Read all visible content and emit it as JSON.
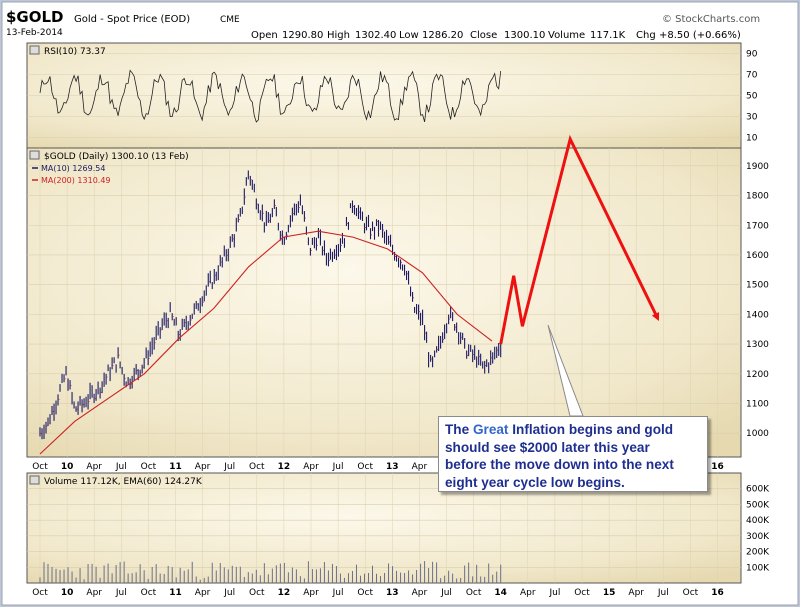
{
  "header": {
    "symbol": "$GOLD",
    "description": "Gold - Spot Price (EOD)",
    "exchange": "CME",
    "date": "13-Feb-2014",
    "watermark": "© StockCharts.com",
    "open_label": "Open",
    "open": "1290.80",
    "high_label": "High",
    "high": "1302.40",
    "low_label": "Low",
    "low": "1286.20",
    "close_label": "Close",
    "close": "1300.10",
    "volume_label": "Volume",
    "volume": "117.1K",
    "chg_label": "Chg",
    "chg": "+8.50 (+0.66%)"
  },
  "rsi_panel": {
    "label": "RSI(10) 73.37",
    "ticks": [
      "90",
      "70",
      "50",
      "30",
      "10"
    ]
  },
  "price_panel": {
    "label": "$GOLD (Daily) 1300.10 (13 Feb)",
    "ma10_label": "MA(10) 1269.54",
    "ma200_label": "MA(200) 1310.49",
    "ticks": [
      "1900",
      "1800",
      "1700",
      "1600",
      "1500",
      "1400",
      "1300",
      "1200",
      "1100",
      "1000"
    ]
  },
  "volume_panel": {
    "label": "Volume 117.12K, EMA(60) 124.27K",
    "ticks": [
      "600K",
      "500K",
      "400K",
      "300K",
      "200K",
      "100K"
    ]
  },
  "annotation": {
    "line1_pre": "The ",
    "line1_hl": "Great",
    "line1_post": " Inflation begins and gold",
    "line2": "should see $2000 later this year",
    "line3": "before the move down into the next",
    "line4": "eight year cycle low begins."
  },
  "colors": {
    "price_bar": "#1a1a66",
    "ma200": "#cc2222",
    "projection": "#ee1111",
    "panel_bg": "#efe6c9",
    "panel_bg_light": "#fbf6e6"
  },
  "chart_data": {
    "type": "line",
    "title": "$GOLD (Daily) 1300.10 (13 Feb)",
    "x_labels": [
      "Oct",
      "10",
      "Apr",
      "Jul",
      "Oct",
      "11",
      "Apr",
      "Jul",
      "Oct",
      "12",
      "Apr",
      "Jul",
      "Oct",
      "13",
      "Apr",
      "Jul",
      "Oct",
      "14",
      "Apr",
      "Jul",
      "Oct",
      "15",
      "Apr",
      "Jul",
      "Oct",
      "16"
    ],
    "ylim": [
      920,
      1960
    ],
    "series": [
      {
        "name": "$GOLD price",
        "x": [
          0,
          1,
          2,
          3,
          4,
          5,
          6,
          7,
          8,
          9,
          10,
          11,
          12,
          13,
          14,
          15,
          16,
          17,
          18,
          19,
          20,
          21,
          22,
          23,
          24,
          25,
          26,
          27,
          28,
          29,
          30,
          31,
          32,
          33,
          34,
          35,
          36,
          37,
          38,
          39,
          40,
          41,
          42,
          43,
          44,
          45,
          46,
          47,
          48,
          49,
          50,
          51,
          52,
          53
        ],
        "values": [
          1000,
          1040,
          1120,
          1200,
          1080,
          1100,
          1130,
          1160,
          1210,
          1250,
          1170,
          1200,
          1240,
          1300,
          1360,
          1400,
          1330,
          1380,
          1420,
          1480,
          1520,
          1580,
          1640,
          1720,
          1880,
          1780,
          1700,
          1750,
          1650,
          1740,
          1780,
          1620,
          1660,
          1590,
          1620,
          1660,
          1780,
          1720,
          1680,
          1700,
          1640,
          1600,
          1560,
          1420,
          1380,
          1220,
          1300,
          1400,
          1360,
          1280,
          1260,
          1220,
          1250,
          1300
        ]
      },
      {
        "name": "MA(200)",
        "x": [
          0,
          4,
          8,
          12,
          16,
          20,
          24,
          28,
          32,
          36,
          40,
          44,
          48,
          52
        ],
        "values": [
          930,
          1040,
          1120,
          1200,
          1320,
          1420,
          1560,
          1660,
          1680,
          1660,
          1620,
          1540,
          1400,
          1310
        ]
      },
      {
        "name": "Projection",
        "x": [
          53,
          54.5,
          55.5,
          61,
          71
        ],
        "values": [
          1300,
          1530,
          1360,
          1990,
          1390
        ]
      }
    ],
    "rsi": {
      "label": "RSI(10)",
      "value": 73.37,
      "ylim": [
        0,
        100
      ]
    },
    "volume": {
      "label": "Volume",
      "value_k": 117.12,
      "ema60_k": 124.27,
      "ylim_k": [
        0,
        700
      ]
    }
  }
}
